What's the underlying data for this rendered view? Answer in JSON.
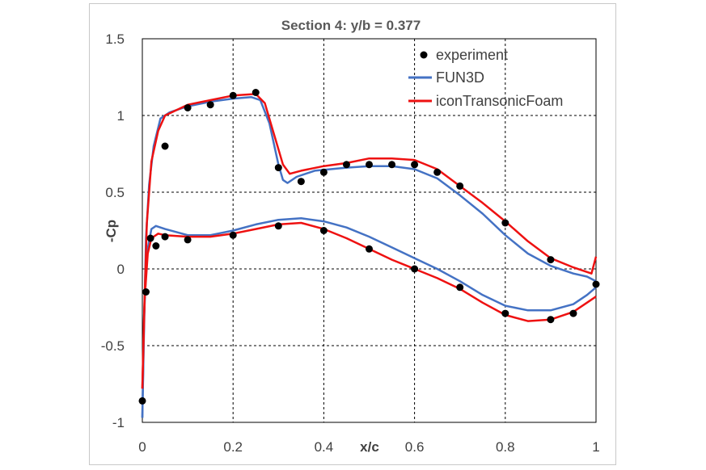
{
  "chart_data": {
    "type": "line",
    "title": "Section 4: y/b = 0.377",
    "xlabel": "x/c",
    "ylabel": "-Cp",
    "xlim": [
      0,
      1
    ],
    "ylim": [
      -1,
      1.5
    ],
    "x_ticks": [
      "0",
      "0.2",
      "0.4",
      "0.6",
      "0.8",
      "1"
    ],
    "y_ticks": [
      "-1",
      "-0.5",
      "0",
      "0.5",
      "1",
      "1.5"
    ],
    "grid": true,
    "legend_position": "top-right",
    "colors": {
      "experiment": "#000000",
      "FUN3D": "#4472c4",
      "iconTransonicFoam": "#ee1111"
    },
    "series": [
      {
        "name": "experiment",
        "kind": "scatter",
        "points": [
          [
            0.0,
            -0.86
          ],
          [
            0.008,
            -0.15
          ],
          [
            0.018,
            0.2
          ],
          [
            0.03,
            0.15
          ],
          [
            0.05,
            0.21
          ],
          [
            0.1,
            0.19
          ],
          [
            0.2,
            0.22
          ],
          [
            0.3,
            0.28
          ],
          [
            0.4,
            0.25
          ],
          [
            0.5,
            0.13
          ],
          [
            0.6,
            0.0
          ],
          [
            0.7,
            -0.12
          ],
          [
            0.8,
            -0.29
          ],
          [
            0.9,
            -0.33
          ],
          [
            0.95,
            -0.29
          ],
          [
            1.0,
            -0.1
          ],
          [
            0.05,
            0.8
          ],
          [
            0.1,
            1.05
          ],
          [
            0.15,
            1.07
          ],
          [
            0.2,
            1.13
          ],
          [
            0.25,
            1.15
          ],
          [
            0.3,
            0.66
          ],
          [
            0.35,
            0.57
          ],
          [
            0.4,
            0.63
          ],
          [
            0.45,
            0.68
          ],
          [
            0.5,
            0.68
          ],
          [
            0.55,
            0.68
          ],
          [
            0.6,
            0.68
          ],
          [
            0.65,
            0.63
          ],
          [
            0.7,
            0.54
          ],
          [
            0.8,
            0.3
          ],
          [
            0.9,
            0.06
          ]
        ]
      },
      {
        "name": "FUN3D",
        "kind": "line",
        "upper": [
          [
            0.0,
            -0.97
          ],
          [
            0.003,
            -0.5
          ],
          [
            0.008,
            0.2
          ],
          [
            0.015,
            0.55
          ],
          [
            0.025,
            0.8
          ],
          [
            0.04,
            0.98
          ],
          [
            0.06,
            1.02
          ],
          [
            0.1,
            1.06
          ],
          [
            0.15,
            1.09
          ],
          [
            0.2,
            1.11
          ],
          [
            0.24,
            1.12
          ],
          [
            0.26,
            1.1
          ],
          [
            0.28,
            0.95
          ],
          [
            0.3,
            0.68
          ],
          [
            0.31,
            0.58
          ],
          [
            0.32,
            0.56
          ],
          [
            0.34,
            0.6
          ],
          [
            0.38,
            0.64
          ],
          [
            0.45,
            0.66
          ],
          [
            0.5,
            0.67
          ],
          [
            0.55,
            0.67
          ],
          [
            0.6,
            0.65
          ],
          [
            0.65,
            0.59
          ],
          [
            0.7,
            0.48
          ],
          [
            0.75,
            0.36
          ],
          [
            0.8,
            0.22
          ],
          [
            0.85,
            0.1
          ],
          [
            0.9,
            0.02
          ],
          [
            0.95,
            -0.03
          ],
          [
            0.98,
            -0.05
          ],
          [
            1.0,
            -0.08
          ]
        ],
        "lower": [
          [
            0.0,
            -0.97
          ],
          [
            0.004,
            -0.3
          ],
          [
            0.01,
            0.1
          ],
          [
            0.02,
            0.26
          ],
          [
            0.03,
            0.28
          ],
          [
            0.05,
            0.26
          ],
          [
            0.1,
            0.22
          ],
          [
            0.15,
            0.22
          ],
          [
            0.2,
            0.25
          ],
          [
            0.25,
            0.29
          ],
          [
            0.3,
            0.32
          ],
          [
            0.35,
            0.33
          ],
          [
            0.4,
            0.31
          ],
          [
            0.45,
            0.27
          ],
          [
            0.5,
            0.21
          ],
          [
            0.55,
            0.14
          ],
          [
            0.6,
            0.07
          ],
          [
            0.65,
            0.0
          ],
          [
            0.7,
            -0.08
          ],
          [
            0.75,
            -0.17
          ],
          [
            0.8,
            -0.24
          ],
          [
            0.85,
            -0.27
          ],
          [
            0.9,
            -0.27
          ],
          [
            0.95,
            -0.23
          ],
          [
            0.98,
            -0.17
          ],
          [
            1.0,
            -0.12
          ]
        ]
      },
      {
        "name": "iconTransonicFoam",
        "kind": "line",
        "upper": [
          [
            0.0,
            -0.78
          ],
          [
            0.004,
            -0.3
          ],
          [
            0.01,
            0.3
          ],
          [
            0.02,
            0.7
          ],
          [
            0.035,
            0.9
          ],
          [
            0.05,
            1.0
          ],
          [
            0.1,
            1.07
          ],
          [
            0.15,
            1.1
          ],
          [
            0.2,
            1.13
          ],
          [
            0.25,
            1.14
          ],
          [
            0.27,
            1.08
          ],
          [
            0.29,
            0.88
          ],
          [
            0.31,
            0.68
          ],
          [
            0.325,
            0.62
          ],
          [
            0.35,
            0.64
          ],
          [
            0.4,
            0.67
          ],
          [
            0.45,
            0.69
          ],
          [
            0.5,
            0.72
          ],
          [
            0.55,
            0.72
          ],
          [
            0.6,
            0.71
          ],
          [
            0.65,
            0.65
          ],
          [
            0.7,
            0.54
          ],
          [
            0.75,
            0.43
          ],
          [
            0.8,
            0.31
          ],
          [
            0.85,
            0.18
          ],
          [
            0.9,
            0.07
          ],
          [
            0.95,
            0.01
          ],
          [
            0.99,
            -0.03
          ],
          [
            1.0,
            0.08
          ]
        ],
        "lower": [
          [
            0.0,
            -0.78
          ],
          [
            0.005,
            -0.2
          ],
          [
            0.012,
            0.1
          ],
          [
            0.02,
            0.2
          ],
          [
            0.035,
            0.23
          ],
          [
            0.05,
            0.22
          ],
          [
            0.1,
            0.21
          ],
          [
            0.15,
            0.21
          ],
          [
            0.2,
            0.23
          ],
          [
            0.25,
            0.26
          ],
          [
            0.3,
            0.29
          ],
          [
            0.35,
            0.3
          ],
          [
            0.4,
            0.26
          ],
          [
            0.45,
            0.2
          ],
          [
            0.5,
            0.13
          ],
          [
            0.55,
            0.06
          ],
          [
            0.6,
            0.0
          ],
          [
            0.65,
            -0.06
          ],
          [
            0.7,
            -0.13
          ],
          [
            0.75,
            -0.22
          ],
          [
            0.8,
            -0.3
          ],
          [
            0.85,
            -0.34
          ],
          [
            0.9,
            -0.33
          ],
          [
            0.95,
            -0.28
          ],
          [
            0.98,
            -0.22
          ],
          [
            1.0,
            -0.18
          ]
        ]
      }
    ]
  }
}
